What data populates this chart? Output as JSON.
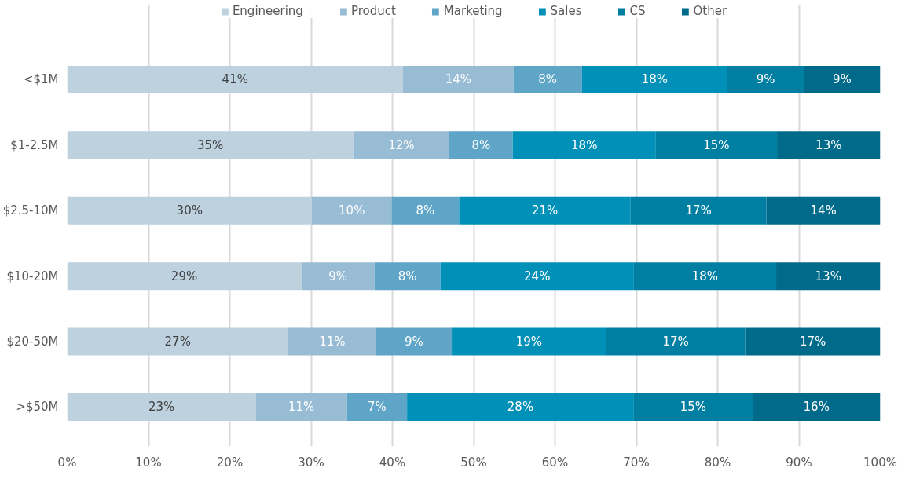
{
  "chart_data": {
    "type": "bar",
    "orientation": "horizontal",
    "stacked": true,
    "categories": [
      "<$1M",
      "$1-2.5M",
      "$2.5-10M",
      "$10-20M",
      "$20-50M",
      ">$50M"
    ],
    "series": [
      {
        "name": "Engineering",
        "color": "#bdd1df",
        "values": [
          41.3,
          35.2,
          30.1,
          28.8,
          27.2,
          23.2
        ],
        "value_labels": [
          "41%",
          "35%",
          "30%",
          "29%",
          "27%",
          "23%"
        ]
      },
      {
        "name": "Product",
        "color": "#98bcd4",
        "values": [
          13.6,
          11.8,
          9.8,
          9.0,
          10.8,
          11.2
        ],
        "value_labels": [
          "14%",
          "12%",
          "10%",
          "9%",
          "11%",
          "11%"
        ]
      },
      {
        "name": "Marketing",
        "color": "#5fa5c7",
        "values": [
          8.4,
          7.8,
          8.3,
          8.1,
          9.3,
          7.4
        ],
        "value_labels": [
          "8%",
          "8%",
          "8%",
          "8%",
          "9%",
          "7%"
        ]
      },
      {
        "name": "Sales",
        "color": "#0090b8",
        "values": [
          17.9,
          17.6,
          21.1,
          23.8,
          19.0,
          27.9
        ],
        "value_labels": [
          "18%",
          "18%",
          "21%",
          "24%",
          "19%",
          "28%"
        ]
      },
      {
        "name": "CS",
        "color": "#007fa3",
        "values": [
          9.4,
          14.9,
          16.7,
          17.5,
          17.1,
          14.6
        ],
        "value_labels": [
          "9%",
          "15%",
          "17%",
          "18%",
          "17%",
          "15%"
        ]
      },
      {
        "name": "Other",
        "color": "#006a8a",
        "values": [
          9.4,
          12.7,
          14.0,
          12.8,
          16.6,
          15.7
        ],
        "value_labels": [
          "9%",
          "13%",
          "14%",
          "13%",
          "17%",
          "16%"
        ]
      }
    ],
    "xlim": [
      0,
      100
    ],
    "xticks": [
      {
        "value": 0,
        "label": "0%"
      },
      {
        "value": 10,
        "label": "10%"
      },
      {
        "value": 20,
        "label": "20%"
      },
      {
        "value": 30,
        "label": "30%"
      },
      {
        "value": 40,
        "label": "40%"
      },
      {
        "value": 50,
        "label": "50%"
      },
      {
        "value": 60,
        "label": "60%"
      },
      {
        "value": 70,
        "label": "70%"
      },
      {
        "value": 80,
        "label": "80%"
      },
      {
        "value": 90,
        "label": "90%"
      },
      {
        "value": 100,
        "label": "100%"
      }
    ],
    "grid": "x",
    "legend": "top"
  }
}
